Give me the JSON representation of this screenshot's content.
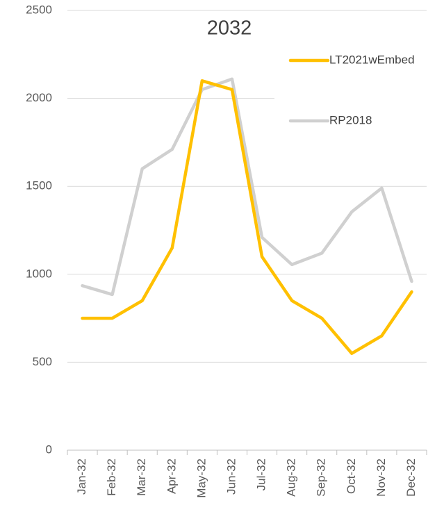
{
  "chart_data": {
    "type": "line",
    "title": "2032",
    "categories": [
      "Jan-32",
      "Feb-32",
      "Mar-32",
      "Apr-32",
      "May-32",
      "Jun-32",
      "Jul-32",
      "Aug-32",
      "Sep-32",
      "Oct-32",
      "Nov-32",
      "Dec-32"
    ],
    "series": [
      {
        "name": "LT2021wEmbed",
        "color": "#ffc000",
        "values": [
          750,
          750,
          850,
          1150,
          2100,
          2050,
          1100,
          850,
          750,
          550,
          650,
          900
        ]
      },
      {
        "name": "RP2018",
        "color": "#d0d0d0",
        "values": [
          935,
          885,
          1600,
          1710,
          2050,
          2110,
          1210,
          1055,
          1120,
          1355,
          1490,
          960
        ]
      }
    ],
    "ylim": [
      0,
      2500
    ],
    "yticks": [
      0,
      500,
      1000,
      1500,
      2000,
      2500
    ],
    "grid": true,
    "legend": "right"
  }
}
